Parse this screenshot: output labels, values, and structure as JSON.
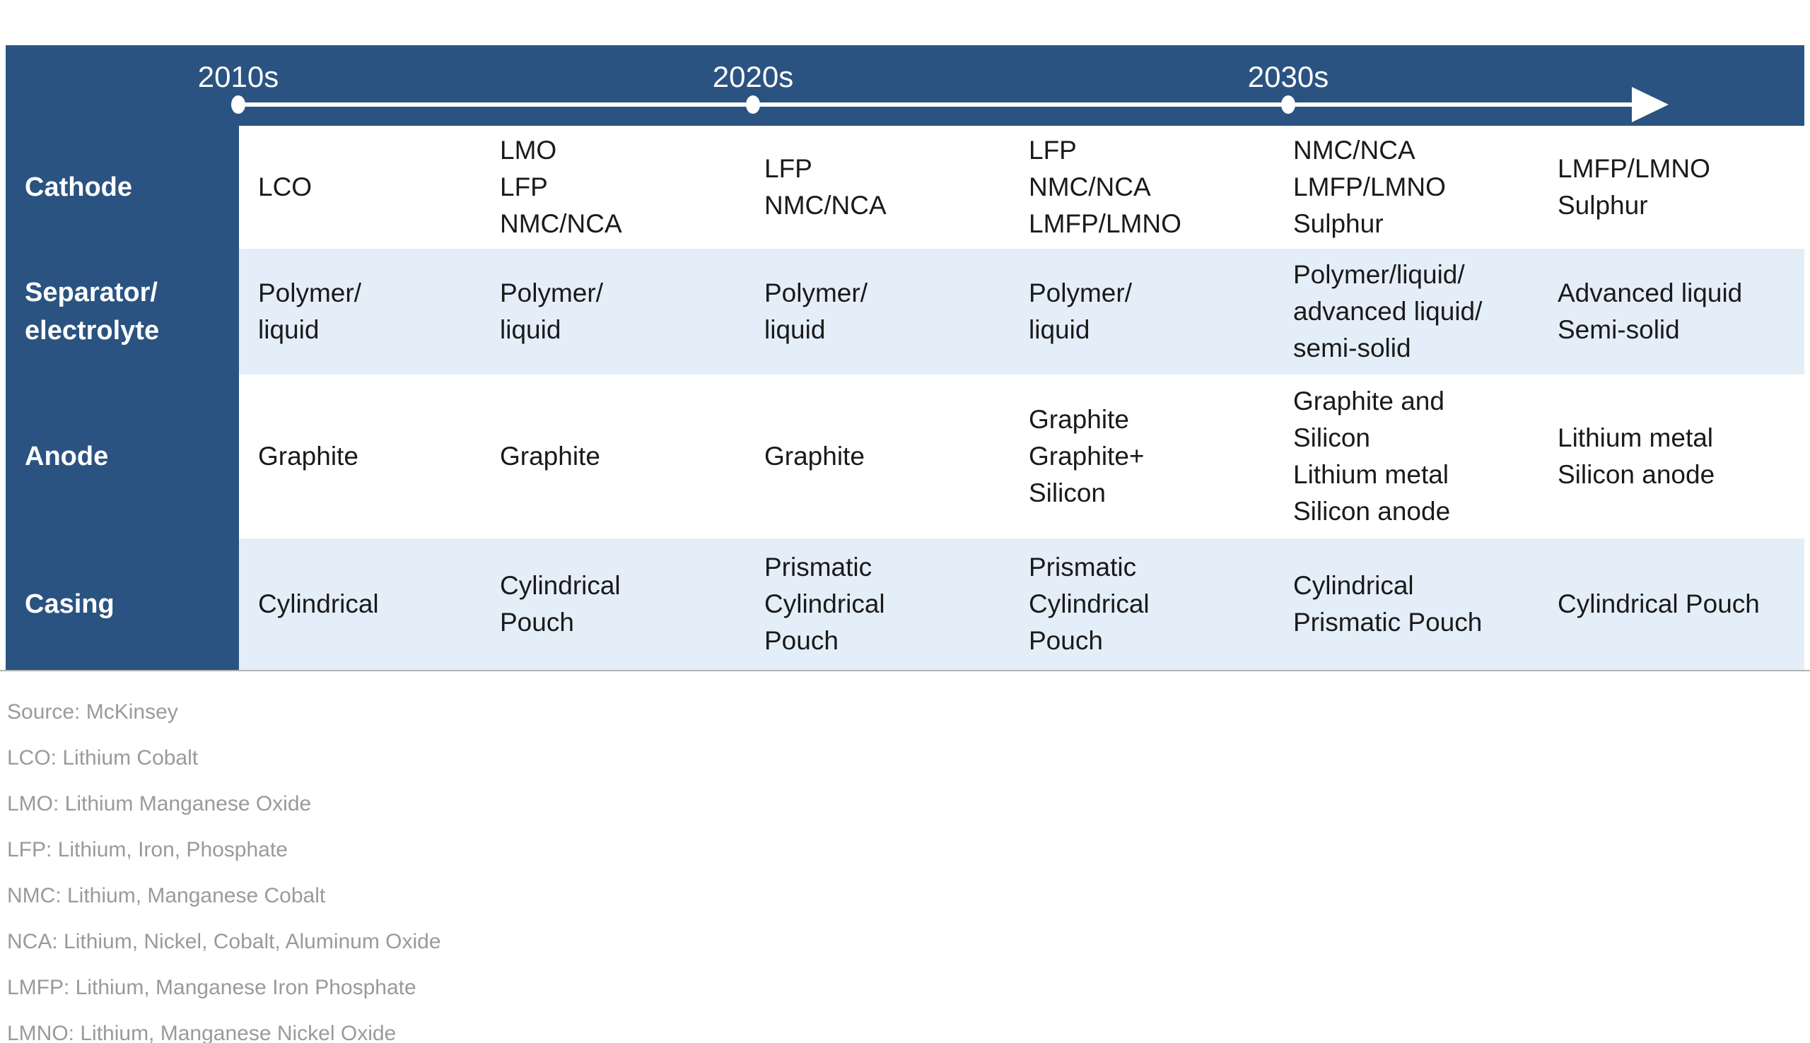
{
  "timeline": {
    "decades": [
      "2010s",
      "2020s",
      "2030s"
    ]
  },
  "table": {
    "rows": [
      {
        "label": [
          "Cathode"
        ],
        "cells": [
          [
            "LCO"
          ],
          [
            "LMO",
            "LFP",
            "NMC/NCA"
          ],
          [
            "LFP",
            "NMC/NCA"
          ],
          [
            "LFP",
            "NMC/NCA",
            "LMFP/LMNO"
          ],
          [
            "NMC/NCA",
            "LMFP/LMNO",
            "Sulphur"
          ],
          [
            "LMFP/LMNO",
            "Sulphur"
          ]
        ]
      },
      {
        "label": [
          "Separator/",
          "electrolyte"
        ],
        "cells": [
          [
            "Polymer/",
            "liquid"
          ],
          [
            "Polymer/",
            "liquid"
          ],
          [
            "Polymer/",
            "liquid"
          ],
          [
            "Polymer/",
            "liquid"
          ],
          [
            "Polymer/liquid/",
            "advanced liquid/",
            "semi-solid"
          ],
          [
            "Advanced liquid",
            "Semi-solid"
          ]
        ]
      },
      {
        "label": [
          "Anode"
        ],
        "cells": [
          [
            "Graphite"
          ],
          [
            "Graphite"
          ],
          [
            "Graphite"
          ],
          [
            "Graphite",
            "Graphite+",
            "Silicon"
          ],
          [
            "Graphite and",
            "Silicon",
            "Lithium metal",
            "Silicon anode"
          ],
          [
            "Lithium metal",
            "Silicon anode"
          ]
        ]
      },
      {
        "label": [
          "Casing"
        ],
        "cells": [
          [
            "Cylindrical"
          ],
          [
            "Cylindrical",
            "Pouch"
          ],
          [
            "Prismatic",
            "Cylindrical",
            "Pouch"
          ],
          [
            "Prismatic",
            "Cylindrical",
            "Pouch"
          ],
          [
            "Cylindrical",
            "Prismatic Pouch"
          ],
          [
            "Cylindrical Pouch"
          ]
        ]
      }
    ]
  },
  "footnotes": [
    "Source: McKinsey",
    "LCO: Lithium Cobalt",
    "LMO: Lithium Manganese Oxide",
    "LFP: Lithium, Iron, Phosphate",
    "NMC: Lithium, Manganese Cobalt",
    "NCA: Lithium, Nickel, Cobalt, Aluminum Oxide",
    "LMFP: Lithium, Manganese Iron Phosphate",
    "LMNO: Lithium, Manganese Nickel Oxide"
  ],
  "colors": {
    "navy": "#2B5381",
    "light_blue": "#E4EEF9",
    "cell_text": "#1A1A1A",
    "footnote_gray": "#9A9A9A",
    "border_gray": "#B3B3B3",
    "timeline_white": "#FFFFFF"
  }
}
